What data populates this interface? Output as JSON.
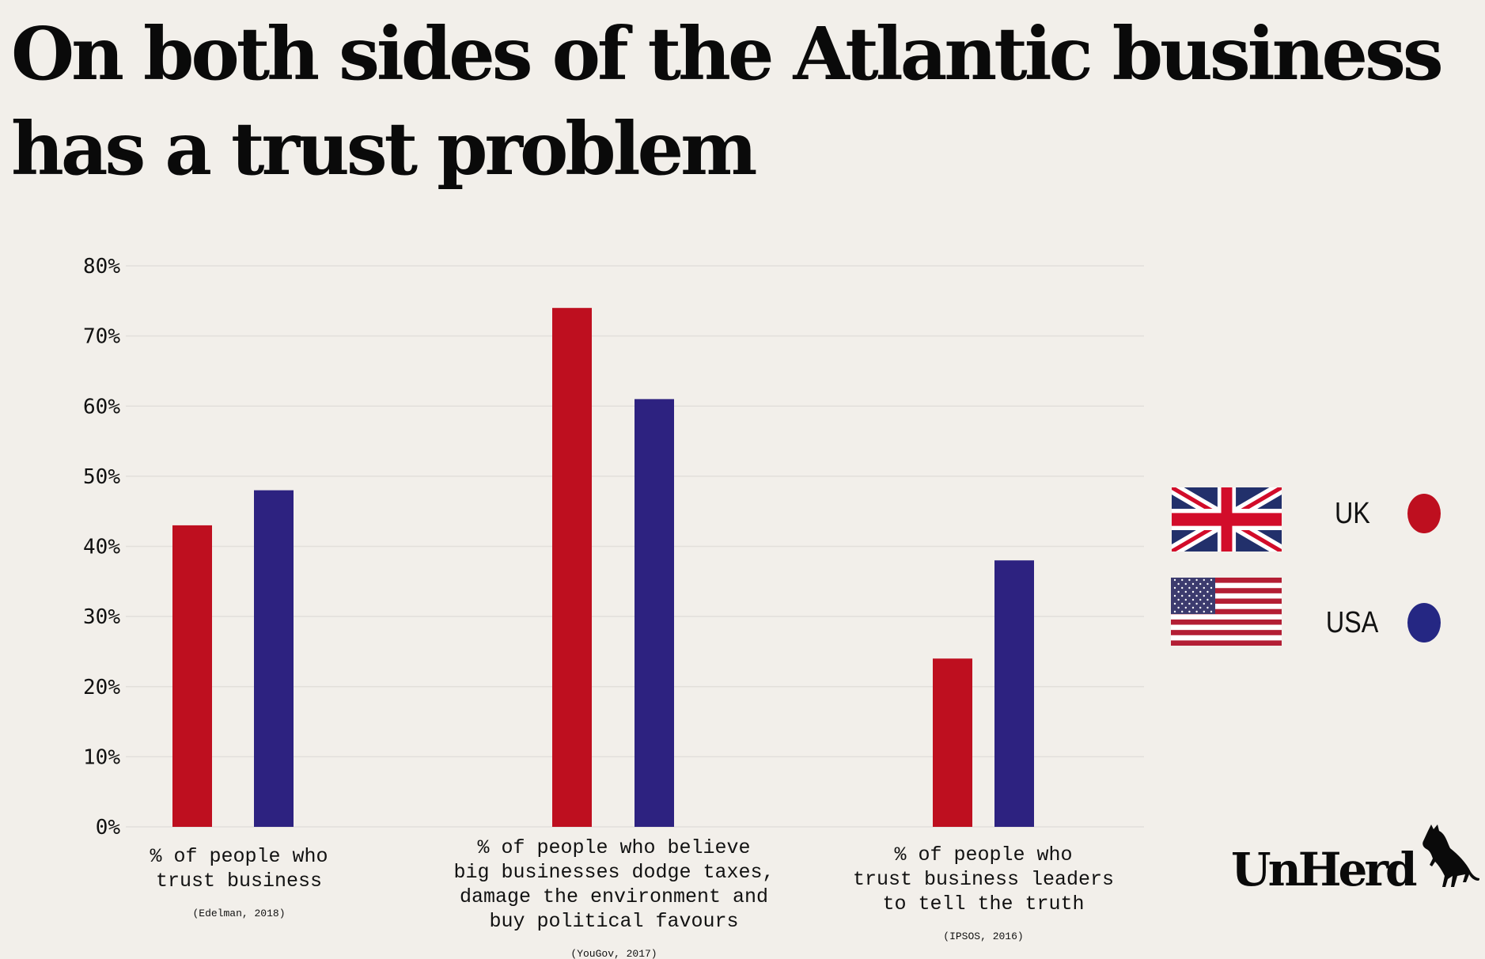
{
  "title_lines": [
    "On both sides of the Atlantic business",
    "has a trust problem"
  ],
  "legend": [
    {
      "label": "UK",
      "color": "#be0f1f",
      "icon": "uk-flag-icon"
    },
    {
      "label": "USA",
      "color": "#2d2280",
      "icon": "usa-flag-icon"
    }
  ],
  "logo": "UnHerd",
  "chart_data": {
    "type": "bar",
    "title": "On both sides of the Atlantic business has a trust problem",
    "xlabel": "",
    "ylabel": "",
    "ylim": [
      0,
      80
    ],
    "yticks": [
      "0%",
      "10%",
      "20%",
      "30%",
      "40%",
      "50%",
      "60%",
      "70%",
      "80%"
    ],
    "grid": true,
    "legend_position": "right",
    "categories": [
      {
        "lines": [
          "% of people who",
          "trust business"
        ],
        "source": "(Edelman, 2018)"
      },
      {
        "lines": [
          "% of people who believe",
          "big businesses dodge taxes,",
          "damage the environment and",
          "buy political favours"
        ],
        "source": "(YouGov, 2017)"
      },
      {
        "lines": [
          "% of people who",
          "trust business leaders",
          "to tell the truth"
        ],
        "source": "(IPSOS, 2016)"
      }
    ],
    "series": [
      {
        "name": "UK",
        "color": "#be0f1f",
        "values": [
          43,
          74,
          24
        ]
      },
      {
        "name": "USA",
        "color": "#2d2280",
        "values": [
          48,
          61,
          38
        ]
      }
    ]
  }
}
